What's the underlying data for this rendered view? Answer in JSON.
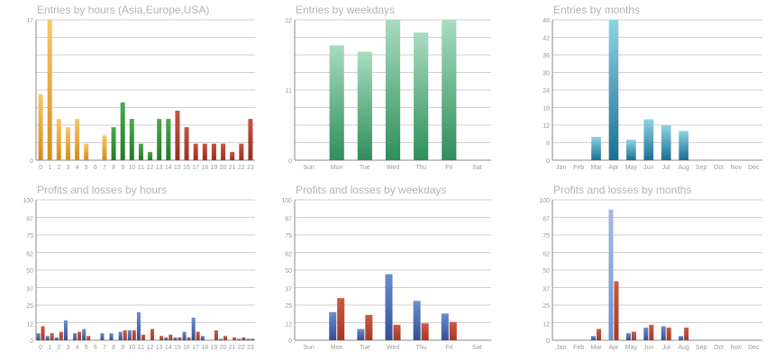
{
  "colors": {
    "orange": "#e09a2a",
    "green": "#2e8a2e",
    "red": "#b23a2a",
    "teal_top": "#a9dcc0",
    "teal_bottom": "#2f8e5c",
    "cyan_top": "#8fd3e3",
    "cyan_bottom": "#1a6f93",
    "blue": "#3a5ea8",
    "loss_red": "#b8402c"
  },
  "chart_data": [
    {
      "id": "hours",
      "type": "bar",
      "title": "Entries by hours (Asia,Europe,USA)",
      "categories": [
        "0",
        "1",
        "2",
        "3",
        "4",
        "5",
        "6",
        "7",
        "8",
        "9",
        "10",
        "11",
        "12",
        "13",
        "14",
        "15",
        "16",
        "17",
        "18",
        "19",
        "20",
        "21",
        "22",
        "23"
      ],
      "values": [
        8,
        17,
        5,
        4,
        5,
        2,
        0,
        3,
        4,
        7,
        5,
        2,
        1,
        5,
        5,
        6,
        4,
        2,
        2,
        2,
        2,
        1,
        2,
        5
      ],
      "segments": [
        "orange",
        "orange",
        "orange",
        "orange",
        "orange",
        "orange",
        "orange",
        "orange",
        "green",
        "green",
        "green",
        "green",
        "green",
        "green",
        "green",
        "red",
        "red",
        "red",
        "red",
        "red",
        "red",
        "red",
        "red",
        "red"
      ],
      "yticks": [
        0,
        17
      ],
      "ylim": [
        0,
        17
      ]
    },
    {
      "id": "weekdays",
      "type": "bar",
      "title": "Entries by weekdays",
      "categories": [
        "Sun",
        "Mon",
        "Tue",
        "Wed",
        "Thu",
        "Fri",
        "Sat"
      ],
      "values": [
        0,
        18,
        17,
        22,
        20,
        22,
        0
      ],
      "yticks": [
        0,
        11,
        22
      ],
      "ylim": [
        0,
        22
      ]
    },
    {
      "id": "months",
      "type": "bar",
      "title": "Entries by months",
      "categories": [
        "Jan",
        "Feb",
        "Mar",
        "Apr",
        "May",
        "Jun",
        "Jul",
        "Aug",
        "Sep",
        "Oct",
        "Nov",
        "Dec"
      ],
      "values": [
        0,
        0,
        8,
        48,
        7,
        14,
        12,
        10,
        0,
        0,
        0,
        0
      ],
      "yticks": [
        0,
        6,
        12,
        18,
        24,
        30,
        36,
        42,
        48
      ],
      "ylim": [
        0,
        48
      ]
    },
    {
      "id": "pl_hours",
      "type": "bar",
      "title": "Profits and losses by hours",
      "categories": [
        "0",
        "1",
        "2",
        "3",
        "4",
        "5",
        "6",
        "7",
        "8",
        "9",
        "10",
        "11",
        "12",
        "13",
        "14",
        "15",
        "16",
        "17",
        "18",
        "19",
        "20",
        "21",
        "22",
        "23"
      ],
      "series": [
        {
          "values": [
            5,
            3,
            2,
            14,
            5,
            8,
            0,
            5,
            5,
            6,
            7,
            20,
            0,
            0,
            2,
            2,
            6,
            16,
            3,
            0,
            1,
            0,
            1,
            1
          ]
        },
        {
          "values": [
            10,
            5,
            6,
            0,
            6,
            3,
            0,
            0,
            0,
            7,
            7,
            4,
            8,
            3,
            4,
            2,
            2,
            6,
            0,
            7,
            3,
            2,
            2,
            1
          ]
        }
      ],
      "yticks": [
        0,
        12,
        25,
        37,
        50,
        62,
        75,
        87,
        100
      ],
      "ylim": [
        0,
        100
      ]
    },
    {
      "id": "pl_weekdays",
      "type": "bar",
      "title": "Profits and losses by weekdays",
      "categories": [
        "Sun",
        "Mon",
        "Tue",
        "Wed",
        "Thu",
        "Fri",
        "Sat"
      ],
      "series": [
        {
          "values": [
            0,
            20,
            8,
            47,
            28,
            19,
            0
          ]
        },
        {
          "values": [
            0,
            30,
            18,
            11,
            12,
            13,
            0
          ]
        }
      ],
      "yticks": [
        0,
        12,
        25,
        37,
        50,
        62,
        75,
        87,
        100
      ],
      "ylim": [
        0,
        100
      ]
    },
    {
      "id": "pl_months",
      "type": "bar",
      "title": "Profits and losses by months",
      "categories": [
        "Jan",
        "Feb",
        "Mar",
        "Apr",
        "May",
        "Jun",
        "Jul",
        "Aug",
        "Sep",
        "Oct",
        "Nov",
        "Dec"
      ],
      "series": [
        {
          "values": [
            0,
            0,
            3,
            93,
            5,
            9,
            10,
            3,
            0,
            0,
            0,
            0
          ]
        },
        {
          "values": [
            0,
            0,
            8,
            42,
            6,
            11,
            9,
            9,
            0,
            0,
            0,
            0
          ]
        }
      ],
      "yticks": [
        0,
        12,
        25,
        37,
        50,
        62,
        75,
        87,
        100
      ],
      "ylim": [
        0,
        100
      ]
    }
  ]
}
